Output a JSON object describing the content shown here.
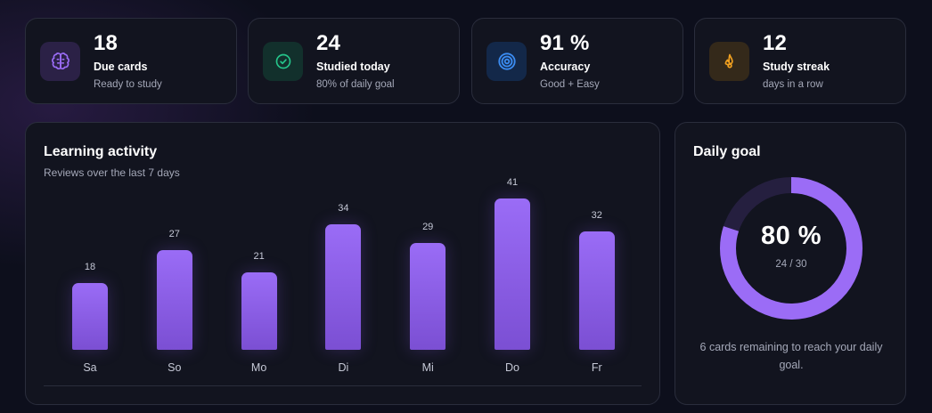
{
  "stats": [
    {
      "value": "18",
      "label": "Due cards",
      "sub": "Ready to study",
      "icon": "brain-icon",
      "accent": "#9b6cf6",
      "bg": "#2b2146"
    },
    {
      "value": "24",
      "label": "Studied today",
      "sub": "80% of daily goal",
      "icon": "check-circle-icon",
      "accent": "#25c48a",
      "bg": "#12302c"
    },
    {
      "value": "91 %",
      "label": "Accuracy",
      "sub": "Good + Easy",
      "icon": "target-icon",
      "accent": "#3b8cf2",
      "bg": "#132849"
    },
    {
      "value": "12",
      "label": "Study streak",
      "sub": "days in a row",
      "icon": "flame-icon",
      "accent": "#f0a020",
      "bg": "#34291a"
    }
  ],
  "activity": {
    "title": "Learning activity",
    "subtitle": "Reviews over the last 7 days"
  },
  "chart_data": {
    "type": "bar",
    "categories": [
      "Sa",
      "So",
      "Mo",
      "Di",
      "Mi",
      "Do",
      "Fr"
    ],
    "values": [
      18,
      27,
      21,
      34,
      29,
      41,
      32
    ],
    "ylim": [
      0,
      41
    ],
    "grid": false,
    "bar_color": "#8f5ff0"
  },
  "goal": {
    "title": "Daily goal",
    "percent": 80,
    "percent_label": "80 %",
    "fraction": "24 / 30",
    "note": "6 cards remaining to reach your daily goal.",
    "ring_color": "#9b6cf6",
    "track_color": "#251f3f"
  }
}
